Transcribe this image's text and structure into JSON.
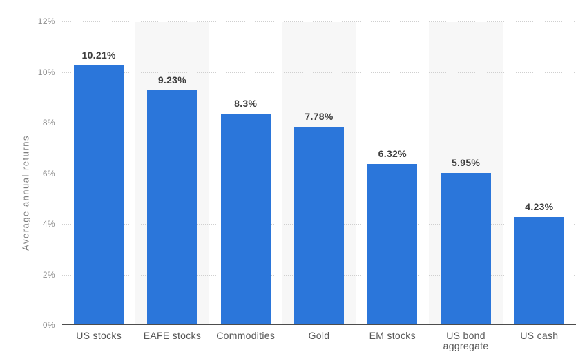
{
  "chart_data": {
    "type": "bar",
    "title": "",
    "xlabel": "",
    "ylabel": "Average annual returns",
    "categories": [
      "US stocks",
      "EAFE stocks",
      "Commodities",
      "Gold",
      "EM stocks",
      "US bond aggregate",
      "US cash"
    ],
    "values": [
      10.21,
      9.23,
      8.3,
      7.78,
      6.32,
      5.95,
      4.23
    ],
    "value_labels": [
      "10.21%",
      "9.23%",
      "8.3%",
      "7.78%",
      "6.32%",
      "5.95%",
      "4.23%"
    ],
    "ylim": [
      0,
      12
    ],
    "yticks": [
      0,
      2,
      4,
      6,
      8,
      10,
      12
    ],
    "ytick_labels": [
      "0%",
      "2%",
      "4%",
      "6%",
      "8%",
      "10%",
      "12%"
    ],
    "grid": "horizontal-dotted",
    "legend": null,
    "stripe_pattern": "alternating column bands, light gray on 2nd, 4th, 6th categories",
    "colors": {
      "bar": "#2b76da",
      "band_stripe": "#f7f7f7",
      "gridline": "#cfcfcf",
      "axis_line": "#4d4d4d",
      "value_label": "#3d3d3d",
      "tick_label": "#8c8c8c",
      "category_label": "#565656",
      "axis_title": "#7d7d7d",
      "background": "#ffffff"
    }
  }
}
